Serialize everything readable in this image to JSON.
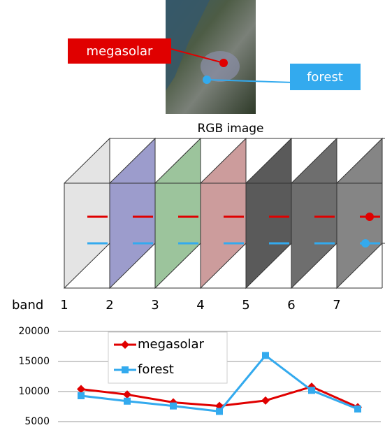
{
  "image": {
    "caption": "RGB image",
    "labels": [
      "megasolar",
      "forest"
    ]
  },
  "stack": {
    "label": "band",
    "bands": [
      "1",
      "2",
      "3",
      "4",
      "5",
      "6",
      "7"
    ]
  },
  "chart_data": {
    "type": "line",
    "categories": [
      null,
      null,
      null,
      null,
      null,
      null,
      null
    ],
    "series": [
      {
        "name": "megasolar",
        "color": "#e00000",
        "marker": "diamond",
        "values": [
          10400,
          9500,
          8200,
          7600,
          8500,
          10800,
          7400
        ]
      },
      {
        "name": "forest",
        "color": "#33aaee",
        "marker": "square",
        "values": [
          9300,
          8400,
          7600,
          6700,
          16000,
          10200,
          7100
        ]
      }
    ],
    "ylim": [
      5000,
      20000
    ],
    "yticks": [
      5000,
      10000,
      15000,
      20000
    ],
    "grid": true,
    "legend": "upper left"
  }
}
